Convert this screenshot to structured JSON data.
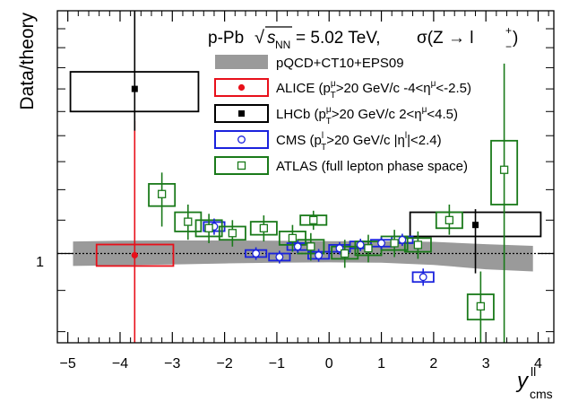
{
  "chart_data": {
    "type": "scatter",
    "ylabel": "Data/theory",
    "xlabel_main": "y",
    "xlabel_sup": "ll",
    "xlabel_sub": "cms",
    "xlim": [
      -5.2,
      4.3
    ],
    "ylim": [
      0.775,
      2.0
    ],
    "log_y": true,
    "x_ticks": [
      -5,
      -4,
      -3,
      -2,
      -1,
      0,
      1,
      2,
      3,
      4
    ],
    "x_tick_labels": [
      "−5",
      "−4",
      "−3",
      "−2",
      "−1",
      "0",
      "1",
      "2",
      "3",
      "4"
    ],
    "y_tick_label": "1",
    "reference_line": 1.0,
    "grid": false,
    "title": {
      "system": "p-Pb",
      "sqrt_symbol": "√",
      "s_var": "s",
      "s_sub": "NN",
      "energy": "= 5.02 TeV,",
      "process": "σ(Z → l",
      "plus": "+",
      "minus": "−",
      "close": ")"
    },
    "legend": {
      "placement": "top-right",
      "entries": [
        {
          "id": "band",
          "parts": [
            "pQCD+CT10+EPS09"
          ]
        },
        {
          "id": "alice",
          "parts": [
            "ALICE (p",
            "μ",
            "T",
            ">20 GeV/c  -4<η",
            "μ",
            "<-2.5)"
          ]
        },
        {
          "id": "lhcb",
          "parts": [
            "LHCb (p",
            "μ",
            "T",
            ">20 GeV/c  2<η",
            "μ",
            "<4.5)"
          ]
        },
        {
          "id": "cms",
          "parts": [
            "CMS (p",
            "l",
            "T",
            ">20 GeV/c  |η",
            "l",
            "|<2.4)"
          ]
        },
        {
          "id": "atlas",
          "parts": [
            "ATLAS (full lepton phase space)"
          ]
        }
      ]
    },
    "theory_band": [
      {
        "x": -4.9,
        "low": 0.965,
        "high": 1.035
      },
      {
        "x": -4.0,
        "low": 0.967,
        "high": 1.037
      },
      {
        "x": -3.0,
        "low": 0.969,
        "high": 1.038
      },
      {
        "x": -2.0,
        "low": 0.972,
        "high": 1.038
      },
      {
        "x": -1.0,
        "low": 0.974,
        "high": 1.037
      },
      {
        "x": 0.0,
        "low": 0.975,
        "high": 1.036
      },
      {
        "x": 1.0,
        "low": 0.974,
        "high": 1.036
      },
      {
        "x": 2.0,
        "low": 0.968,
        "high": 1.034
      },
      {
        "x": 3.0,
        "low": 0.956,
        "high": 1.027
      },
      {
        "x": 3.9,
        "low": 0.95,
        "high": 1.022
      }
    ],
    "series": [
      {
        "name": "ALICE",
        "color": "#e8101a",
        "marker": "filled-circle",
        "points": [
          {
            "x": -3.72,
            "y": 0.995,
            "stat_low": 0.6,
            "stat_high": 1.46,
            "sys_xlo": -4.45,
            "sys_xhi": -2.98,
            "sys_ylo": 0.965,
            "sys_yhi": 1.026
          }
        ]
      },
      {
        "name": "LHCb",
        "color": "#000000",
        "marker": "filled-square",
        "points": [
          {
            "x": -3.72,
            "y": 1.6,
            "stat_low": 1.42,
            "stat_high": 2.1,
            "sys_xlo": -4.95,
            "sys_xhi": -2.5,
            "sys_ylo": 1.5,
            "sys_yhi": 1.68
          },
          {
            "x": 2.8,
            "y": 1.085,
            "stat_low": 0.945,
            "stat_high": 1.135,
            "sys_xlo": 1.55,
            "sys_xhi": 4.05,
            "sys_ylo": 1.05,
            "sys_yhi": 1.125
          }
        ]
      },
      {
        "name": "CMS",
        "color": "#1a22dd",
        "marker": "open-circle",
        "points": [
          {
            "x": -2.2,
            "y": 1.08,
            "stat_low": 1.055,
            "stat_high": 1.105,
            "sys_xlo": -2.4,
            "sys_xhi": -2.0,
            "sys_ylo": 1.066,
            "sys_yhi": 1.094
          },
          {
            "x": -1.4,
            "y": 1.0,
            "stat_low": 0.982,
            "stat_high": 1.018,
            "sys_xlo": -1.6,
            "sys_xhi": -1.2,
            "sys_ylo": 0.99,
            "sys_yhi": 1.01
          },
          {
            "x": -0.95,
            "y": 0.99,
            "stat_low": 0.972,
            "stat_high": 1.008,
            "sys_xlo": -1.15,
            "sys_xhi": -0.75,
            "sys_ylo": 0.98,
            "sys_yhi": 1.0
          },
          {
            "x": -0.6,
            "y": 1.02,
            "stat_low": 1.002,
            "stat_high": 1.038,
            "sys_xlo": -0.8,
            "sys_xhi": -0.4,
            "sys_ylo": 1.01,
            "sys_yhi": 1.03
          },
          {
            "x": -0.2,
            "y": 0.995,
            "stat_low": 0.977,
            "stat_high": 1.013,
            "sys_xlo": -0.4,
            "sys_xhi": 0.0,
            "sys_ylo": 0.985,
            "sys_yhi": 1.005
          },
          {
            "x": 0.2,
            "y": 1.015,
            "stat_low": 0.997,
            "stat_high": 1.033,
            "sys_xlo": 0.0,
            "sys_xhi": 0.4,
            "sys_ylo": 1.005,
            "sys_yhi": 1.025
          },
          {
            "x": 0.6,
            "y": 1.025,
            "stat_low": 1.007,
            "stat_high": 1.043,
            "sys_xlo": 0.4,
            "sys_xhi": 0.8,
            "sys_ylo": 1.015,
            "sys_yhi": 1.035
          },
          {
            "x": 1.0,
            "y": 1.03,
            "stat_low": 1.012,
            "stat_high": 1.048,
            "sys_xlo": 0.8,
            "sys_xhi": 1.2,
            "sys_ylo": 1.02,
            "sys_yhi": 1.04
          },
          {
            "x": 1.4,
            "y": 1.04,
            "stat_low": 1.022,
            "stat_high": 1.058,
            "sys_xlo": 1.2,
            "sys_xhi": 1.6,
            "sys_ylo": 1.03,
            "sys_yhi": 1.05
          },
          {
            "x": 1.8,
            "y": 0.935,
            "stat_low": 0.912,
            "stat_high": 0.958,
            "sys_xlo": 1.6,
            "sys_xhi": 2.0,
            "sys_ylo": 0.922,
            "sys_yhi": 0.948
          }
        ]
      },
      {
        "name": "ATLAS",
        "color": "#1a7a1a",
        "marker": "open-square",
        "points": [
          {
            "x": -3.2,
            "y": 1.185,
            "stat_low": 1.08,
            "stat_high": 1.26,
            "sys_xlo": -3.45,
            "sys_xhi": -2.95,
            "sys_ylo": 1.145,
            "sys_yhi": 1.22
          },
          {
            "x": -2.7,
            "y": 1.095,
            "stat_low": 1.04,
            "stat_high": 1.15,
            "sys_xlo": -2.95,
            "sys_xhi": -2.45,
            "sys_ylo": 1.065,
            "sys_yhi": 1.125
          },
          {
            "x": -2.3,
            "y": 1.075,
            "stat_low": 1.03,
            "stat_high": 1.12,
            "sys_xlo": -2.55,
            "sys_xhi": -2.05,
            "sys_ylo": 1.05,
            "sys_yhi": 1.1
          },
          {
            "x": -1.85,
            "y": 1.06,
            "stat_low": 1.02,
            "stat_high": 1.1,
            "sys_xlo": -2.1,
            "sys_xhi": -1.6,
            "sys_ylo": 1.04,
            "sys_yhi": 1.08
          },
          {
            "x": -1.25,
            "y": 1.075,
            "stat_low": 1.035,
            "stat_high": 1.115,
            "sys_xlo": -1.5,
            "sys_xhi": -1.0,
            "sys_ylo": 1.055,
            "sys_yhi": 1.095
          },
          {
            "x": -0.7,
            "y": 1.045,
            "stat_low": 1.005,
            "stat_high": 1.085,
            "sys_xlo": -0.95,
            "sys_xhi": -0.45,
            "sys_ylo": 1.025,
            "sys_yhi": 1.065
          },
          {
            "x": -0.35,
            "y": 1.02,
            "stat_low": 0.98,
            "stat_high": 1.06,
            "sys_xlo": -0.6,
            "sys_xhi": -0.1,
            "sys_ylo": 1.0,
            "sys_yhi": 1.04
          },
          {
            "x": -0.3,
            "y": 1.1,
            "stat_low": 1.07,
            "stat_high": 1.13,
            "sys_xlo": -0.55,
            "sys_xhi": -0.05,
            "sys_ylo": 1.085,
            "sys_yhi": 1.115
          },
          {
            "x": 0.3,
            "y": 1.0,
            "stat_low": 0.96,
            "stat_high": 1.04,
            "sys_xlo": 0.05,
            "sys_xhi": 0.55,
            "sys_ylo": 0.985,
            "sys_yhi": 1.02
          },
          {
            "x": 0.75,
            "y": 1.015,
            "stat_low": 0.975,
            "stat_high": 1.055,
            "sys_xlo": 0.5,
            "sys_xhi": 1.0,
            "sys_ylo": 0.995,
            "sys_yhi": 1.035
          },
          {
            "x": 1.25,
            "y": 1.03,
            "stat_low": 0.99,
            "stat_high": 1.07,
            "sys_xlo": 1.0,
            "sys_xhi": 1.5,
            "sys_ylo": 1.01,
            "sys_yhi": 1.05
          },
          {
            "x": 1.7,
            "y": 1.025,
            "stat_low": 0.985,
            "stat_high": 1.065,
            "sys_xlo": 1.45,
            "sys_xhi": 1.95,
            "sys_ylo": 1.005,
            "sys_yhi": 1.045
          },
          {
            "x": 2.3,
            "y": 1.1,
            "stat_low": 1.055,
            "stat_high": 1.15,
            "sys_xlo": 2.05,
            "sys_xhi": 2.55,
            "sys_ylo": 1.075,
            "sys_yhi": 1.125
          },
          {
            "x": 2.9,
            "y": 0.86,
            "stat_low": 0.775,
            "stat_high": 0.95,
            "sys_xlo": 2.65,
            "sys_xhi": 3.15,
            "sys_ylo": 0.828,
            "sys_yhi": 0.89
          },
          {
            "x": 3.35,
            "y": 1.27,
            "stat_low": 0.775,
            "stat_high": 1.72,
            "sys_xlo": 3.1,
            "sys_xhi": 3.6,
            "sys_ylo": 1.15,
            "sys_yhi": 1.38
          }
        ]
      }
    ]
  }
}
